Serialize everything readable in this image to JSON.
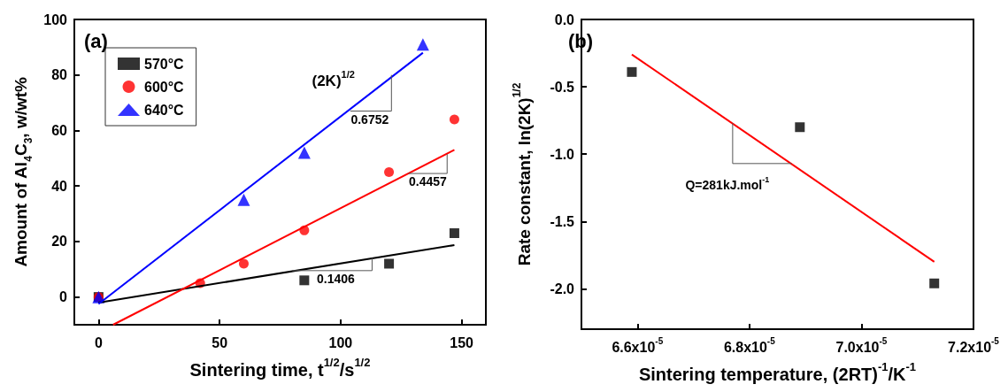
{
  "chart_data": [
    {
      "type": "scatter",
      "title": "(a)",
      "xlabel": "Sintering time, t$^{1/2}$/s$^{1/2}$",
      "ylabel": "Amount of Al$_{4}$C$_{3}$, w/wt%",
      "xlim": [
        -10,
        160
      ],
      "xticks": [
        0,
        50,
        100,
        150
      ],
      "ylim": [
        -10,
        100
      ],
      "yticks": [
        0,
        20,
        40,
        60,
        80,
        100
      ],
      "grid": false,
      "legend": "top left",
      "series": [
        {
          "name": "570°C",
          "color": "#000000",
          "marker": "square",
          "x": [
            0,
            85,
            120,
            147
          ],
          "values": [
            0,
            6,
            12,
            23
          ]
        },
        {
          "name": "600°C",
          "color": "#ff0000",
          "marker": "circle",
          "x": [
            0,
            42,
            60,
            85,
            120,
            147
          ],
          "values": [
            0,
            5,
            12,
            24,
            45,
            64
          ]
        },
        {
          "name": "640°C",
          "color": "#0000ff",
          "marker": "triangle",
          "x": [
            0,
            60,
            85,
            134
          ],
          "values": [
            0,
            35,
            52,
            91
          ]
        },
        {
          "type": "line",
          "color": "#000000",
          "marker": "none",
          "x": [
            0,
            147
          ],
          "values": [
            -2,
            18.7
          ]
        },
        {
          "type": "line",
          "color": "#ff0000",
          "marker": "none",
          "x": [
            6,
            147
          ],
          "values": [
            -10,
            53
          ]
        },
        {
          "type": "line",
          "color": "#0000ff",
          "marker": "none",
          "x": [
            0,
            134
          ],
          "values": [
            -2.5,
            88
          ]
        }
      ],
      "annotations": [
        "(2K)$^{1/2}$",
        {
          "text": "0.6752",
          "x": 104,
          "y": 67.7
        },
        {
          "text": "0.4457",
          "x": 128,
          "y": 44.5
        },
        "0.1406"
      ]
    },
    {
      "type": "scatter",
      "title": "(b)",
      "xlabel": "Sintering temperature, (2RT)$^{-1}$/K$^{-1}$",
      "ylabel": "Rate constant, ln(2K)$^{1/2}$",
      "xlim": [
        6.5e-05,
        7.2e-05
      ],
      "xticks": [
        {
          "value": 6.6e-05,
          "label": "6.6x10$^{-5}$"
        },
        {
          "value": 6.8e-05,
          "label": "6.8x10$^{-5}$"
        },
        {
          "value": 7e-05,
          "label": "7.0x10$^{-5}$"
        },
        {
          "value": 7.2e-05,
          "label": "7.2x10$^{-5}$"
        }
      ],
      "ylim": [
        -2.3,
        0
      ],
      "yticks": [
        {
          "value": 0,
          "label": "0.0"
        },
        {
          "value": -0.5,
          "label": "-0.5"
        },
        {
          "value": -1,
          "label": "-1.0"
        },
        {
          "value": -1.5,
          "label": "-1.5"
        },
        {
          "value": -2,
          "label": "-2.0"
        }
      ],
      "grid": false,
      "legend": false,
      "series": [
        {
          "color": "#000000",
          "marker": "square",
          "x": [
            6.59e-05,
            6.89e-05,
            7.13e-05
          ],
          "values": [
            -0.39,
            -0.8,
            -1.96
          ]
        },
        {
          "type": "line",
          "color": "#ff0000",
          "marker": "none",
          "x": [
            6.59e-05,
            7.13e-05
          ],
          "values": [
            -0.26,
            -1.8
          ]
        }
      ],
      "annotations": [
        {
          "text": "Q=281kJ.mol$^{-1}$",
          "x": 6.77e-05,
          "y": -0.773
        }
      ]
    }
  ]
}
